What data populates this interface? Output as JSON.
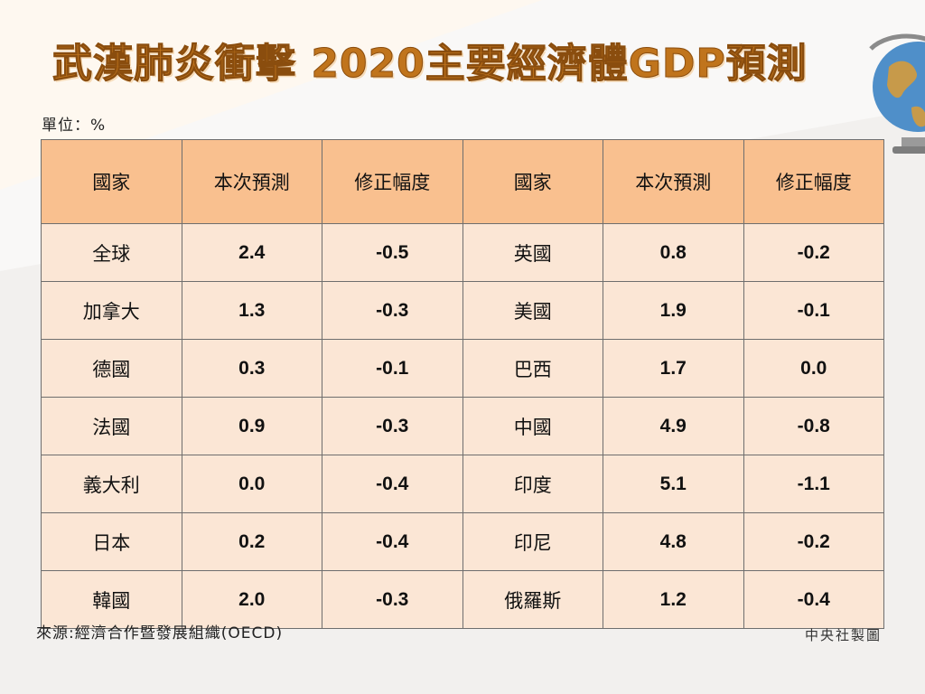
{
  "title": "武漢肺炎衝擊 2020主要經濟體GDP預測",
  "unit": "單位：%",
  "headers": [
    "國家",
    "本次預測",
    "修正幅度",
    "國家",
    "本次預測",
    "修正幅度"
  ],
  "rows": [
    {
      "left": {
        "country": "全球",
        "forecast": "2.4",
        "revision": "-0.5"
      },
      "right": {
        "country": "英國",
        "forecast": "0.8",
        "revision": "-0.2"
      }
    },
    {
      "left": {
        "country": "加拿大",
        "forecast": "1.3",
        "revision": "-0.3"
      },
      "right": {
        "country": "美國",
        "forecast": "1.9",
        "revision": "-0.1"
      }
    },
    {
      "left": {
        "country": "德國",
        "forecast": "0.3",
        "revision": "-0.1"
      },
      "right": {
        "country": "巴西",
        "forecast": "1.7",
        "revision": "0.0"
      }
    },
    {
      "left": {
        "country": "法國",
        "forecast": "0.9",
        "revision": "-0.3"
      },
      "right": {
        "country": "中國",
        "forecast": "4.9",
        "revision": "-0.8"
      }
    },
    {
      "left": {
        "country": "義大利",
        "forecast": "0.0",
        "revision": "-0.4"
      },
      "right": {
        "country": "印度",
        "forecast": "5.1",
        "revision": "-1.1"
      }
    },
    {
      "left": {
        "country": "日本",
        "forecast": "0.2",
        "revision": "-0.4"
      },
      "right": {
        "country": "印尼",
        "forecast": "4.8",
        "revision": "-0.2"
      }
    },
    {
      "left": {
        "country": "韓國",
        "forecast": "2.0",
        "revision": "-0.3"
      },
      "right": {
        "country": "俄羅斯",
        "forecast": "1.2",
        "revision": "-0.4"
      }
    }
  ],
  "source": "來源:經濟合作暨發展組織(OECD)",
  "credit": "中央社製圖",
  "colors": {
    "title": "#c0741c",
    "header_bg": "#f9c08f",
    "cell_bg": "#fbe6d5",
    "negative": "#e01818",
    "globe_ocean": "#4f8fc9",
    "globe_land": "#c79a4a"
  },
  "icons": {
    "decoration": "globe-icon"
  }
}
